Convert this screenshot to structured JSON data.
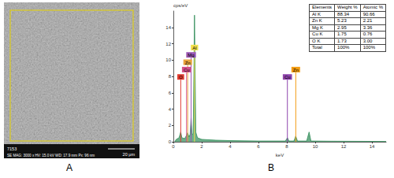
{
  "panel_labels": [
    "A",
    "B"
  ],
  "micrograph": {
    "id": "7153",
    "info": "SE MAG: 3000 x HV: 15.0 kV WD: 17.9 mm Px: 96 nm",
    "scale_bar": "20 μm"
  },
  "chart_data": {
    "type": "line",
    "x_label": "keV",
    "y_label": "cps/eV",
    "xlim": [
      0,
      15
    ],
    "xticks": [
      0,
      2,
      4,
      6,
      8,
      10,
      12,
      14
    ],
    "ylim": [
      0,
      16
    ],
    "yticks": [
      0,
      2,
      4,
      6,
      8,
      10,
      12,
      14
    ],
    "grid": false,
    "series": [
      {
        "color": "#2e8b57",
        "x": [
          0.1,
          0.2,
          0.4,
          0.52,
          0.6,
          0.8,
          0.93,
          1.01,
          1.1,
          1.18,
          1.25,
          1.32,
          1.4,
          1.49,
          1.58,
          1.7,
          2,
          3,
          4,
          5,
          6,
          7,
          7.9,
          8.04,
          8.15,
          8.5,
          8.63,
          8.75,
          9.4,
          9.57,
          9.7,
          11,
          15
        ],
        "values": [
          0,
          0.3,
          0.5,
          1.2,
          0.5,
          0.4,
          0.8,
          1.1,
          0.6,
          0.9,
          3.0,
          0.9,
          1.0,
          15.5,
          1.2,
          0.5,
          0.3,
          0.2,
          0.15,
          0.12,
          0.1,
          0.1,
          0.1,
          0.5,
          0.1,
          0.1,
          0.7,
          0.1,
          0.1,
          1.2,
          0.1,
          0.08,
          0.05
        ]
      }
    ],
    "element_lines": [
      {
        "label": "O",
        "energy": 0.52,
        "height": 7.6,
        "color": "#e03c31"
      },
      {
        "label": "Cu",
        "energy": 0.93,
        "height": 8.5,
        "color": "#d4508a"
      },
      {
        "label": "Zn",
        "energy": 1.01,
        "height": 9.4,
        "color": "#e8a33c"
      },
      {
        "label": "Mg",
        "energy": 1.25,
        "height": 10.3,
        "color": "#9b59b6"
      },
      {
        "label": "Al",
        "energy": 1.49,
        "height": 11.2,
        "color": "#f1e04b"
      },
      {
        "label": "Cu",
        "energy": 8.04,
        "height": 7.6,
        "color": "#8e44ad"
      },
      {
        "label": "Zn",
        "energy": 8.63,
        "height": 8.5,
        "color": "#f39c12"
      }
    ]
  },
  "table": {
    "header": [
      "Elements",
      "Weight %",
      "Atomic %"
    ],
    "rows": [
      [
        "Al K",
        "88.34",
        "90.66"
      ],
      [
        "Zn K",
        "5.23",
        "2.21"
      ],
      [
        "Mg K",
        "2.95",
        "3.36"
      ],
      [
        "Cu K",
        "1.75",
        "0.76"
      ],
      [
        "O K",
        "1.73",
        "3.00"
      ],
      [
        "Total",
        "100%",
        "100%"
      ]
    ]
  }
}
